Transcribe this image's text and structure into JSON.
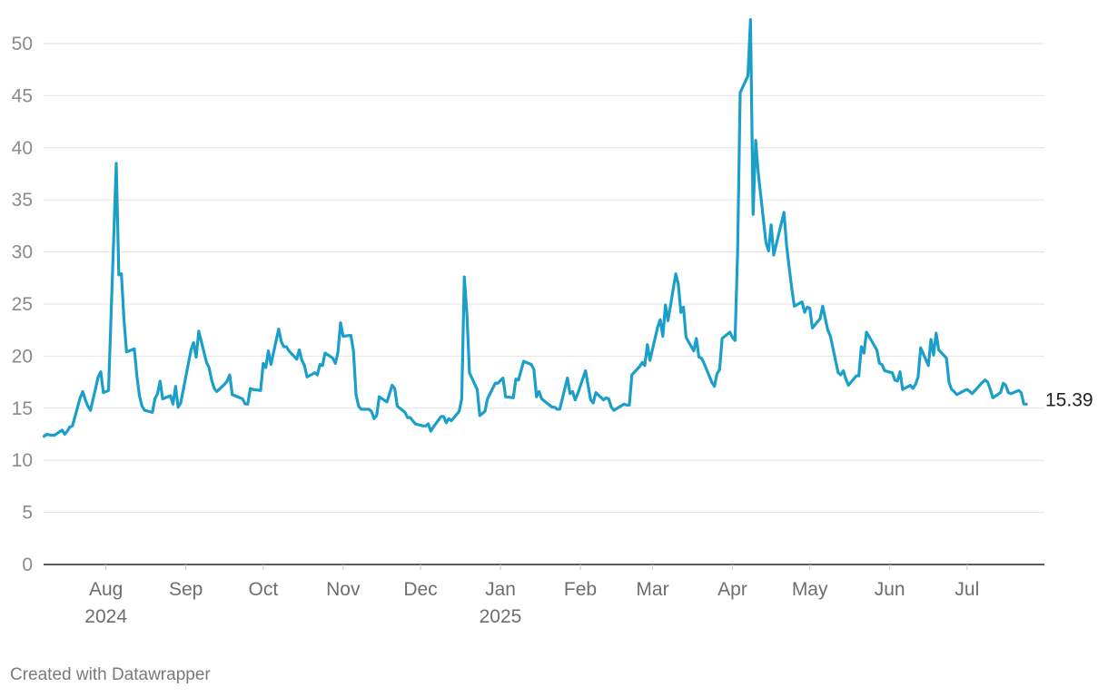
{
  "credit": "Created with Datawrapper",
  "chart_data": {
    "type": "line",
    "line_color": "#1a9fcb",
    "grid": true,
    "ylim": [
      0,
      52
    ],
    "y_ticks": [
      0,
      5,
      10,
      15,
      20,
      25,
      30,
      35,
      40,
      45,
      50
    ],
    "x_range": [
      "2024-07-05",
      "2025-07-31"
    ],
    "x_ticks": [
      {
        "date": "2024-08-01",
        "label": "Aug",
        "year": "2024"
      },
      {
        "date": "2024-09-01",
        "label": "Sep"
      },
      {
        "date": "2024-10-01",
        "label": "Oct"
      },
      {
        "date": "2024-11-01",
        "label": "Nov"
      },
      {
        "date": "2024-12-01",
        "label": "Dec"
      },
      {
        "date": "2025-01-01",
        "label": "Jan",
        "year": "2025"
      },
      {
        "date": "2025-02-01",
        "label": "Feb"
      },
      {
        "date": "2025-03-01",
        "label": "Mar"
      },
      {
        "date": "2025-04-01",
        "label": "Apr"
      },
      {
        "date": "2025-05-01",
        "label": "May"
      },
      {
        "date": "2025-06-01",
        "label": "Jun"
      },
      {
        "date": "2025-07-01",
        "label": "Jul"
      }
    ],
    "end_label": "15.39",
    "series": [
      {
        "points": [
          [
            "2024-07-08",
            12.3
          ],
          [
            "2024-07-09",
            12.5
          ],
          [
            "2024-07-11",
            12.4
          ],
          [
            "2024-07-12",
            12.4
          ],
          [
            "2024-07-15",
            12.9
          ],
          [
            "2024-07-16",
            12.5
          ],
          [
            "2024-07-17",
            12.8
          ],
          [
            "2024-07-18",
            13.2
          ],
          [
            "2024-07-19",
            13.3
          ],
          [
            "2024-07-22",
            16.0
          ],
          [
            "2024-07-23",
            16.6
          ],
          [
            "2024-07-24",
            15.8
          ],
          [
            "2024-07-25",
            15.2
          ],
          [
            "2024-07-26",
            14.8
          ],
          [
            "2024-07-29",
            18.0
          ],
          [
            "2024-07-30",
            18.5
          ],
          [
            "2024-07-31",
            16.5
          ],
          [
            "2024-08-01",
            16.6
          ],
          [
            "2024-08-02",
            16.7
          ],
          [
            "2024-08-05",
            38.5
          ],
          [
            "2024-08-06",
            27.8
          ],
          [
            "2024-08-07",
            27.9
          ],
          [
            "2024-08-08",
            23.5
          ],
          [
            "2024-08-09",
            20.4
          ],
          [
            "2024-08-12",
            20.7
          ],
          [
            "2024-08-13",
            18.1
          ],
          [
            "2024-08-14",
            16.2
          ],
          [
            "2024-08-15",
            15.2
          ],
          [
            "2024-08-16",
            14.8
          ],
          [
            "2024-08-19",
            14.6
          ],
          [
            "2024-08-20",
            15.9
          ],
          [
            "2024-08-21",
            16.4
          ],
          [
            "2024-08-22",
            17.6
          ],
          [
            "2024-08-23",
            15.9
          ],
          [
            "2024-08-26",
            16.2
          ],
          [
            "2024-08-27",
            15.4
          ],
          [
            "2024-08-28",
            17.1
          ],
          [
            "2024-08-29",
            15.1
          ],
          [
            "2024-08-30",
            15.5
          ],
          [
            "2024-09-03",
            20.6
          ],
          [
            "2024-09-04",
            21.3
          ],
          [
            "2024-09-05",
            19.9
          ],
          [
            "2024-09-06",
            22.4
          ],
          [
            "2024-09-09",
            19.4
          ],
          [
            "2024-09-10",
            18.9
          ],
          [
            "2024-09-11",
            17.7
          ],
          [
            "2024-09-12",
            16.9
          ],
          [
            "2024-09-13",
            16.6
          ],
          [
            "2024-09-16",
            17.3
          ],
          [
            "2024-09-17",
            17.6
          ],
          [
            "2024-09-18",
            18.2
          ],
          [
            "2024-09-19",
            16.3
          ],
          [
            "2024-09-20",
            16.2
          ],
          [
            "2024-09-23",
            15.9
          ],
          [
            "2024-09-24",
            15.4
          ],
          [
            "2024-09-25",
            15.4
          ],
          [
            "2024-09-26",
            16.9
          ],
          [
            "2024-09-27",
            16.8
          ],
          [
            "2024-09-30",
            16.7
          ],
          [
            "2024-10-01",
            19.3
          ],
          [
            "2024-10-02",
            18.9
          ],
          [
            "2024-10-03",
            20.5
          ],
          [
            "2024-10-04",
            19.2
          ],
          [
            "2024-10-07",
            22.6
          ],
          [
            "2024-10-08",
            21.4
          ],
          [
            "2024-10-09",
            20.9
          ],
          [
            "2024-10-10",
            20.9
          ],
          [
            "2024-10-11",
            20.5
          ],
          [
            "2024-10-14",
            19.7
          ],
          [
            "2024-10-15",
            20.6
          ],
          [
            "2024-10-16",
            19.6
          ],
          [
            "2024-10-17",
            19.1
          ],
          [
            "2024-10-18",
            18.0
          ],
          [
            "2024-10-21",
            18.4
          ],
          [
            "2024-10-22",
            18.2
          ],
          [
            "2024-10-23",
            19.2
          ],
          [
            "2024-10-24",
            19.1
          ],
          [
            "2024-10-25",
            20.3
          ],
          [
            "2024-10-28",
            19.8
          ],
          [
            "2024-10-29",
            19.3
          ],
          [
            "2024-10-30",
            20.4
          ],
          [
            "2024-10-31",
            23.2
          ],
          [
            "2024-11-01",
            21.9
          ],
          [
            "2024-11-04",
            22.0
          ],
          [
            "2024-11-05",
            20.5
          ],
          [
            "2024-11-06",
            16.3
          ],
          [
            "2024-11-07",
            15.2
          ],
          [
            "2024-11-08",
            14.9
          ],
          [
            "2024-11-11",
            14.9
          ],
          [
            "2024-11-12",
            14.7
          ],
          [
            "2024-11-13",
            14.0
          ],
          [
            "2024-11-14",
            14.3
          ],
          [
            "2024-11-15",
            16.1
          ],
          [
            "2024-11-18",
            15.6
          ],
          [
            "2024-11-19",
            16.4
          ],
          [
            "2024-11-20",
            17.2
          ],
          [
            "2024-11-21",
            16.9
          ],
          [
            "2024-11-22",
            15.2
          ],
          [
            "2024-11-25",
            14.6
          ],
          [
            "2024-11-26",
            14.1
          ],
          [
            "2024-11-27",
            14.1
          ],
          [
            "2024-11-29",
            13.5
          ],
          [
            "2024-12-02",
            13.3
          ],
          [
            "2024-12-03",
            13.3
          ],
          [
            "2024-12-04",
            13.5
          ],
          [
            "2024-12-05",
            12.8
          ],
          [
            "2024-12-06",
            13.2
          ],
          [
            "2024-12-09",
            14.2
          ],
          [
            "2024-12-10",
            14.2
          ],
          [
            "2024-12-11",
            13.6
          ],
          [
            "2024-12-12",
            14.0
          ],
          [
            "2024-12-13",
            13.8
          ],
          [
            "2024-12-16",
            14.7
          ],
          [
            "2024-12-17",
            15.9
          ],
          [
            "2024-12-18",
            27.6
          ],
          [
            "2024-12-19",
            24.1
          ],
          [
            "2024-12-20",
            18.4
          ],
          [
            "2024-12-23",
            16.8
          ],
          [
            "2024-12-24",
            14.3
          ],
          [
            "2024-12-26",
            14.7
          ],
          [
            "2024-12-27",
            15.9
          ],
          [
            "2024-12-30",
            17.4
          ],
          [
            "2024-12-31",
            17.4
          ],
          [
            "2025-01-02",
            17.9
          ],
          [
            "2025-01-03",
            16.1
          ],
          [
            "2025-01-06",
            16.0
          ],
          [
            "2025-01-07",
            17.8
          ],
          [
            "2025-01-08",
            17.7
          ],
          [
            "2025-01-10",
            19.5
          ],
          [
            "2025-01-13",
            19.2
          ],
          [
            "2025-01-14",
            18.7
          ],
          [
            "2025-01-15",
            16.1
          ],
          [
            "2025-01-16",
            16.6
          ],
          [
            "2025-01-17",
            15.9
          ],
          [
            "2025-01-21",
            15.1
          ],
          [
            "2025-01-22",
            15.1
          ],
          [
            "2025-01-23",
            14.9
          ],
          [
            "2025-01-24",
            14.9
          ],
          [
            "2025-01-27",
            17.9
          ],
          [
            "2025-01-28",
            16.4
          ],
          [
            "2025-01-29",
            16.6
          ],
          [
            "2025-01-30",
            15.8
          ],
          [
            "2025-01-31",
            16.4
          ],
          [
            "2025-02-03",
            18.6
          ],
          [
            "2025-02-04",
            17.2
          ],
          [
            "2025-02-05",
            15.8
          ],
          [
            "2025-02-06",
            15.5
          ],
          [
            "2025-02-07",
            16.5
          ],
          [
            "2025-02-10",
            15.8
          ],
          [
            "2025-02-11",
            16.0
          ],
          [
            "2025-02-12",
            15.9
          ],
          [
            "2025-02-13",
            15.1
          ],
          [
            "2025-02-14",
            14.8
          ],
          [
            "2025-02-18",
            15.4
          ],
          [
            "2025-02-19",
            15.3
          ],
          [
            "2025-02-20",
            15.3
          ],
          [
            "2025-02-21",
            18.2
          ],
          [
            "2025-02-24",
            19.0
          ],
          [
            "2025-02-25",
            19.4
          ],
          [
            "2025-02-26",
            19.1
          ],
          [
            "2025-02-27",
            21.1
          ],
          [
            "2025-02-28",
            19.6
          ],
          [
            "2025-03-03",
            22.8
          ],
          [
            "2025-03-04",
            23.5
          ],
          [
            "2025-03-05",
            21.9
          ],
          [
            "2025-03-06",
            24.9
          ],
          [
            "2025-03-07",
            23.4
          ],
          [
            "2025-03-10",
            27.9
          ],
          [
            "2025-03-11",
            26.9
          ],
          [
            "2025-03-12",
            24.2
          ],
          [
            "2025-03-13",
            24.7
          ],
          [
            "2025-03-14",
            21.8
          ],
          [
            "2025-03-17",
            20.5
          ],
          [
            "2025-03-18",
            21.7
          ],
          [
            "2025-03-19",
            19.9
          ],
          [
            "2025-03-20",
            19.8
          ],
          [
            "2025-03-21",
            19.3
          ],
          [
            "2025-03-24",
            17.5
          ],
          [
            "2025-03-25",
            17.1
          ],
          [
            "2025-03-26",
            18.3
          ],
          [
            "2025-03-27",
            18.7
          ],
          [
            "2025-03-28",
            21.7
          ],
          [
            "2025-03-31",
            22.3
          ],
          [
            "2025-04-01",
            21.8
          ],
          [
            "2025-04-02",
            21.5
          ],
          [
            "2025-04-03",
            30.0
          ],
          [
            "2025-04-04",
            45.3
          ],
          [
            "2025-04-07",
            46.9
          ],
          [
            "2025-04-08",
            52.3
          ],
          [
            "2025-04-09",
            33.6
          ],
          [
            "2025-04-10",
            40.7
          ],
          [
            "2025-04-11",
            37.6
          ],
          [
            "2025-04-14",
            30.9
          ],
          [
            "2025-04-15",
            30.1
          ],
          [
            "2025-04-16",
            32.6
          ],
          [
            "2025-04-17",
            29.7
          ],
          [
            "2025-04-21",
            33.8
          ],
          [
            "2025-04-22",
            30.6
          ],
          [
            "2025-04-23",
            28.5
          ],
          [
            "2025-04-24",
            26.5
          ],
          [
            "2025-04-25",
            24.8
          ],
          [
            "2025-04-28",
            25.2
          ],
          [
            "2025-04-29",
            24.2
          ],
          [
            "2025-04-30",
            24.7
          ],
          [
            "2025-05-01",
            24.6
          ],
          [
            "2025-05-02",
            22.7
          ],
          [
            "2025-05-05",
            23.6
          ],
          [
            "2025-05-06",
            24.8
          ],
          [
            "2025-05-07",
            23.6
          ],
          [
            "2025-05-08",
            22.5
          ],
          [
            "2025-05-09",
            21.9
          ],
          [
            "2025-05-12",
            18.4
          ],
          [
            "2025-05-13",
            18.2
          ],
          [
            "2025-05-14",
            18.6
          ],
          [
            "2025-05-15",
            17.8
          ],
          [
            "2025-05-16",
            17.2
          ],
          [
            "2025-05-19",
            18.1
          ],
          [
            "2025-05-20",
            18.1
          ],
          [
            "2025-05-21",
            20.9
          ],
          [
            "2025-05-22",
            20.3
          ],
          [
            "2025-05-23",
            22.3
          ],
          [
            "2025-05-27",
            20.6
          ],
          [
            "2025-05-28",
            19.3
          ],
          [
            "2025-05-29",
            19.2
          ],
          [
            "2025-05-30",
            18.6
          ],
          [
            "2025-06-02",
            18.4
          ],
          [
            "2025-06-03",
            17.7
          ],
          [
            "2025-06-04",
            17.6
          ],
          [
            "2025-06-05",
            18.5
          ],
          [
            "2025-06-06",
            16.8
          ],
          [
            "2025-06-09",
            17.2
          ],
          [
            "2025-06-10",
            16.9
          ],
          [
            "2025-06-11",
            17.3
          ],
          [
            "2025-06-12",
            18.0
          ],
          [
            "2025-06-13",
            20.8
          ],
          [
            "2025-06-16",
            19.1
          ],
          [
            "2025-06-17",
            21.6
          ],
          [
            "2025-06-18",
            20.1
          ],
          [
            "2025-06-19",
            22.2
          ],
          [
            "2025-06-20",
            20.6
          ],
          [
            "2025-06-23",
            19.8
          ],
          [
            "2025-06-24",
            17.5
          ],
          [
            "2025-06-25",
            16.8
          ],
          [
            "2025-06-26",
            16.6
          ],
          [
            "2025-06-27",
            16.3
          ],
          [
            "2025-06-30",
            16.7
          ],
          [
            "2025-07-01",
            16.8
          ],
          [
            "2025-07-02",
            16.6
          ],
          [
            "2025-07-03",
            16.4
          ],
          [
            "2025-07-07",
            17.5
          ],
          [
            "2025-07-08",
            17.7
          ],
          [
            "2025-07-09",
            17.5
          ],
          [
            "2025-07-10",
            16.8
          ],
          [
            "2025-07-11",
            16.0
          ],
          [
            "2025-07-14",
            16.5
          ],
          [
            "2025-07-15",
            17.4
          ],
          [
            "2025-07-16",
            17.2
          ],
          [
            "2025-07-17",
            16.5
          ],
          [
            "2025-07-18",
            16.4
          ],
          [
            "2025-07-21",
            16.7
          ],
          [
            "2025-07-22",
            16.5
          ],
          [
            "2025-07-23",
            15.4
          ],
          [
            "2025-07-24",
            15.39
          ]
        ]
      }
    ]
  }
}
